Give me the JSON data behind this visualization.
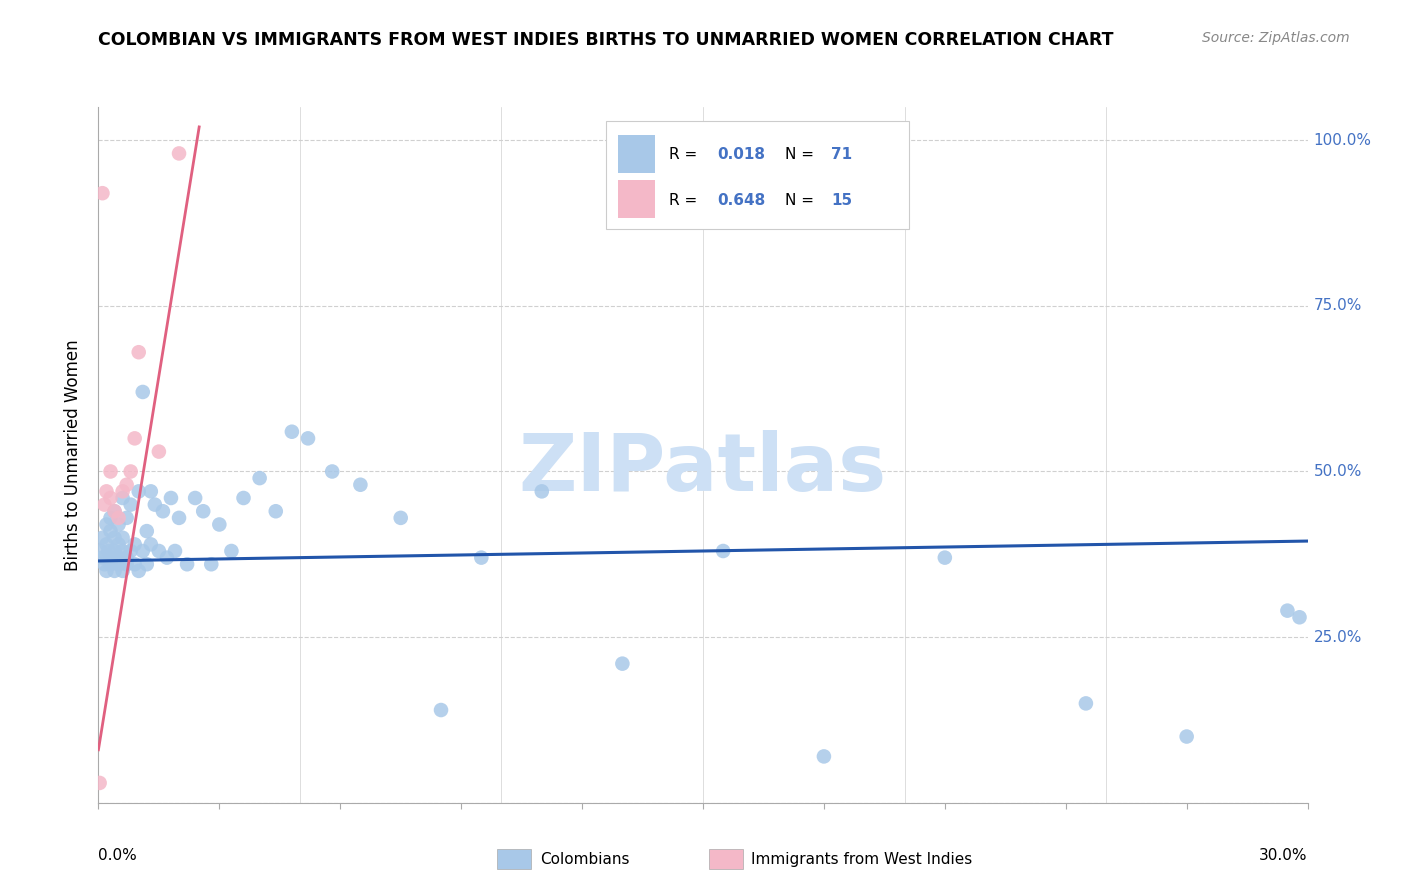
{
  "title": "COLOMBIAN VS IMMIGRANTS FROM WEST INDIES BIRTHS TO UNMARRIED WOMEN CORRELATION CHART",
  "source": "Source: ZipAtlas.com",
  "ylabel": "Births to Unmarried Women",
  "ytick_pos": [
    0.0,
    0.25,
    0.5,
    0.75,
    1.0
  ],
  "ytick_labels": [
    "",
    "25.0%",
    "50.0%",
    "75.0%",
    "100.0%"
  ],
  "legend_blue_r": "0.018",
  "legend_blue_n": "71",
  "legend_pink_r": "0.648",
  "legend_pink_n": "15",
  "legend_label_blue": "Colombians",
  "legend_label_pink": "Immigrants from West Indies",
  "blue_color": "#a8c8e8",
  "pink_color": "#f4b8c8",
  "blue_line_color": "#2255aa",
  "pink_line_color": "#e06080",
  "watermark": "ZIPatlas",
  "watermark_color": "#cde0f5",
  "r_n_color": "#4472c4",
  "blue_scatter_x": [
    0.0005,
    0.001,
    0.001,
    0.0015,
    0.002,
    0.002,
    0.002,
    0.0025,
    0.003,
    0.003,
    0.003,
    0.003,
    0.004,
    0.004,
    0.004,
    0.004,
    0.005,
    0.005,
    0.005,
    0.005,
    0.006,
    0.006,
    0.006,
    0.006,
    0.007,
    0.007,
    0.007,
    0.008,
    0.008,
    0.009,
    0.009,
    0.01,
    0.01,
    0.011,
    0.011,
    0.012,
    0.012,
    0.013,
    0.013,
    0.014,
    0.015,
    0.016,
    0.017,
    0.018,
    0.019,
    0.02,
    0.022,
    0.024,
    0.026,
    0.028,
    0.03,
    0.033,
    0.036,
    0.04,
    0.044,
    0.048,
    0.052,
    0.058,
    0.065,
    0.075,
    0.085,
    0.095,
    0.11,
    0.13,
    0.155,
    0.18,
    0.21,
    0.245,
    0.27,
    0.295,
    0.298
  ],
  "blue_scatter_y": [
    0.38,
    0.37,
    0.4,
    0.36,
    0.39,
    0.42,
    0.35,
    0.38,
    0.37,
    0.41,
    0.36,
    0.43,
    0.38,
    0.35,
    0.4,
    0.44,
    0.37,
    0.39,
    0.36,
    0.42,
    0.38,
    0.46,
    0.35,
    0.4,
    0.37,
    0.43,
    0.36,
    0.45,
    0.38,
    0.39,
    0.36,
    0.47,
    0.35,
    0.62,
    0.38,
    0.41,
    0.36,
    0.47,
    0.39,
    0.45,
    0.38,
    0.44,
    0.37,
    0.46,
    0.38,
    0.43,
    0.36,
    0.46,
    0.44,
    0.36,
    0.42,
    0.38,
    0.46,
    0.49,
    0.44,
    0.56,
    0.55,
    0.5,
    0.48,
    0.43,
    0.14,
    0.37,
    0.47,
    0.21,
    0.38,
    0.07,
    0.37,
    0.15,
    0.1,
    0.29,
    0.28
  ],
  "pink_scatter_x": [
    0.0003,
    0.001,
    0.0015,
    0.002,
    0.003,
    0.003,
    0.004,
    0.005,
    0.006,
    0.007,
    0.008,
    0.009,
    0.01,
    0.015,
    0.02
  ],
  "pink_scatter_y": [
    0.03,
    0.92,
    0.45,
    0.47,
    0.46,
    0.5,
    0.44,
    0.43,
    0.47,
    0.48,
    0.5,
    0.55,
    0.68,
    0.53,
    0.98
  ],
  "blue_trend_x": [
    0.0,
    0.3
  ],
  "blue_trend_y": [
    0.365,
    0.395
  ],
  "pink_trend_x": [
    0.0,
    0.025
  ],
  "pink_trend_y": [
    0.08,
    1.02
  ],
  "xmin": 0.0,
  "xmax": 0.3,
  "ymin": 0.0,
  "ymax": 1.05,
  "marker_size": 110
}
